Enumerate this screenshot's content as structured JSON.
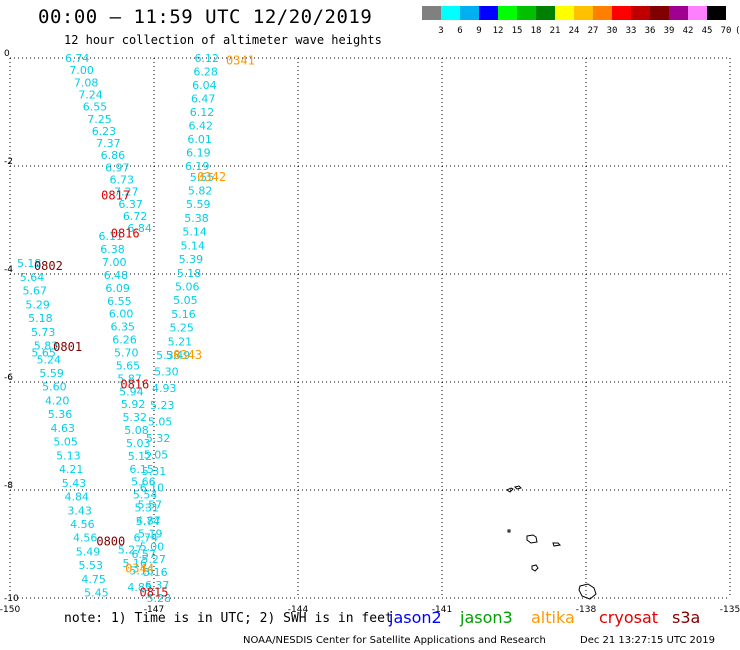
{
  "header": {
    "title": "00:00 – 11:59 UTC 12/20/2019",
    "subtitle": "12 hour collection of altimeter wave heights"
  },
  "color_scale": {
    "labels": [
      "3",
      "6",
      "9",
      "12",
      "15",
      "18",
      "21",
      "24",
      "27",
      "30",
      "33",
      "36",
      "39",
      "42",
      "45",
      "70",
      "(ft)"
    ],
    "colors": [
      "#808080",
      "#00ffff",
      "#00b0f0",
      "#0000ff",
      "#00ff00",
      "#00c000",
      "#008000",
      "#ffff00",
      "#ffc000",
      "#ff8000",
      "#ff0000",
      "#c00000",
      "#800000",
      "#a00090",
      "#ff80ff",
      "#000000"
    ]
  },
  "chart_data": {
    "type": "scatter",
    "x_ticks": [
      "-150",
      "-147",
      "-144",
      "-141",
      "-138",
      "-135"
    ],
    "y_ticks": [
      "0",
      "-2",
      "-4",
      "-6",
      "-8",
      "-10"
    ],
    "xlim": [
      -150,
      -135
    ],
    "ylim": [
      -10,
      0
    ],
    "grid": true,
    "value_color": "#00d0e8",
    "passes": [
      {
        "label": "0341",
        "color": "#ff9900",
        "x": -145.2,
        "y": -0.05
      },
      {
        "label": "0342",
        "color": "#ff9900",
        "x": -145.8,
        "y": -2.2
      },
      {
        "label": "0343",
        "color": "#ff9900",
        "x": -146.3,
        "y": -5.5
      },
      {
        "label": "0344",
        "color": "#ff9900",
        "x": -147.3,
        "y": -9.45
      },
      {
        "label": "0817",
        "color": "#e00000",
        "x": -147.8,
        "y": -2.55
      },
      {
        "label": "0816",
        "color": "#e00000",
        "x": -147.6,
        "y": -3.25
      },
      {
        "label": "0816",
        "color": "#e00000",
        "x": -147.4,
        "y": -6.05
      },
      {
        "label": "0815",
        "color": "#e00000",
        "x": -147.0,
        "y": -9.9
      },
      {
        "label": "0802",
        "color": "#800000",
        "x": -149.2,
        "y": -3.85
      },
      {
        "label": "0801",
        "color": "#800000",
        "x": -148.8,
        "y": -5.35
      },
      {
        "label": "0800",
        "color": "#800000",
        "x": -147.9,
        "y": -8.95
      }
    ],
    "tracks": [
      {
        "x0": -148.6,
        "y0": 0.0,
        "x1": -147.3,
        "y1": -3.15,
        "values": [
          "6.74",
          "7.00",
          "7.08",
          "7.24",
          "6.55",
          "7.25",
          "6.23",
          "7.37",
          "6.86",
          "6.97",
          "6.73",
          "7.27",
          "6.37",
          "6.72",
          "6.84"
        ]
      },
      {
        "x0": -147.9,
        "y0": -3.3,
        "x1": -146.9,
        "y1": -10.0,
        "values": [
          "6.11",
          "6.38",
          "7.00",
          "6.48",
          "6.09",
          "6.55",
          "6.00",
          "6.35",
          "6.26",
          "5.70",
          "5.65",
          "5.87",
          "5.94",
          "5.92",
          "5.32",
          "5.08",
          "5.03",
          "5.12",
          "6.15",
          "5.66",
          "5.54",
          "5.31",
          "4.87",
          "5.19",
          "5.00",
          "5.27",
          "5.16",
          "6.37",
          "5.28"
        ]
      },
      {
        "x0": -145.9,
        "y0": 0.0,
        "x1": -146.1,
        "y1": -2.0,
        "values": [
          "6.12",
          "6.28",
          "6.04",
          "6.47",
          "6.12",
          "6.42",
          "6.01",
          "6.19",
          "6.19"
        ]
      },
      {
        "x0": -146.0,
        "y0": -2.2,
        "x1": -146.5,
        "y1": -5.5,
        "values": [
          "5.55",
          "5.82",
          "5.59",
          "5.38",
          "5.14",
          "5.14",
          "5.39",
          "5.18",
          "5.06",
          "5.05",
          "5.16",
          "5.25",
          "5.21",
          "5.49"
        ]
      },
      {
        "x0": -146.7,
        "y0": -5.5,
        "x1": -147.3,
        "y1": -9.8,
        "values": [
          "5.38",
          "5.30",
          "4.93",
          "5.23",
          "5.05",
          "5.32",
          "5.05",
          "5.31",
          "6.10",
          "5.57",
          "5.74",
          "6.74",
          "6.57",
          "5.16",
          "4.85"
        ]
      },
      {
        "x0": -149.6,
        "y0": -3.8,
        "x1": -148.2,
        "y1": -9.9,
        "values": [
          "5.18",
          "5.64",
          "5.67",
          "5.29",
          "5.18",
          "5.73",
          "5.83",
          "5.24",
          "5.59",
          "5.60",
          "4.20",
          "5.36",
          "4.63",
          "5.05",
          "5.13",
          "4.21",
          "5.43",
          "4.84",
          "3.43",
          "4.56",
          "4.56",
          "5.49",
          "5.53",
          "4.75",
          "5.45"
        ]
      }
    ],
    "extra_values": [
      {
        "v": "5.65",
        "x": -149.3,
        "y": -5.45
      },
      {
        "v": "5.16",
        "x": -147.4,
        "y": -9.35
      },
      {
        "v": "5.27",
        "x": -147.5,
        "y": -9.1
      }
    ]
  },
  "footer": {
    "note": "note: 1) Time is in UTC; 2) SWH is in feet",
    "satellites": [
      {
        "name": "jason2",
        "color": "#0000ff"
      },
      {
        "name": "jason3",
        "color": "#00a000"
      },
      {
        "name": "altika",
        "color": "#ff9900"
      },
      {
        "name": "cryosat",
        "color": "#e00000"
      },
      {
        "name": "s3a",
        "color": "#800000"
      }
    ],
    "credit": "NOAA/NESDIS Center for Satellite Applications and Research",
    "timestamp": "Dec 21 13:27:15 UTC 2019"
  }
}
